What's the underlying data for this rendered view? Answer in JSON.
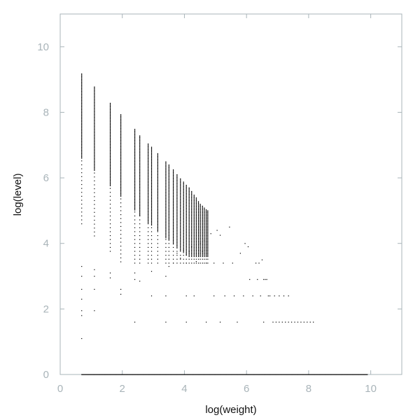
{
  "chart_data": {
    "type": "scatter",
    "title": "",
    "xlabel": "log(weight)",
    "ylabel": "log(level)",
    "xlim": [
      0,
      11
    ],
    "ylim": [
      0,
      11
    ],
    "x_ticks": [
      0,
      2,
      4,
      6,
      8,
      10
    ],
    "y_ticks": [
      0,
      2,
      4,
      6,
      8,
      10
    ],
    "x_tick_labels": [
      "0",
      "2",
      "4",
      "6",
      "8",
      "10"
    ],
    "y_tick_labels": [
      "0",
      "2",
      "4",
      "6",
      "8",
      "10"
    ],
    "grid": false,
    "legend": "none",
    "colors": {
      "points": "#000000",
      "frame": "#a9b4b9",
      "tick_labels": "#a9b4b9",
      "axis_labels": "#111111"
    },
    "columns": [
      {
        "x": 0.69,
        "ymax": 9.2
      },
      {
        "x": 1.1,
        "ymax": 8.8
      },
      {
        "x": 1.61,
        "ymax": 8.3
      },
      {
        "x": 1.95,
        "ymax": 7.95
      },
      {
        "x": 2.4,
        "ymax": 7.5
      },
      {
        "x": 2.56,
        "ymax": 7.3
      },
      {
        "x": 2.83,
        "ymax": 7.05
      },
      {
        "x": 2.94,
        "ymax": 6.95
      },
      {
        "x": 3.14,
        "ymax": 6.75
      },
      {
        "x": 3.4,
        "ymax": 6.5
      },
      {
        "x": 3.5,
        "ymax": 6.4
      },
      {
        "x": 3.64,
        "ymax": 6.25
      },
      {
        "x": 3.76,
        "ymax": 6.1
      },
      {
        "x": 3.87,
        "ymax": 6.0
      },
      {
        "x": 3.97,
        "ymax": 5.9
      },
      {
        "x": 4.06,
        "ymax": 5.8
      },
      {
        "x": 4.15,
        "ymax": 5.7
      },
      {
        "x": 4.23,
        "ymax": 5.6
      },
      {
        "x": 4.31,
        "ymax": 5.5
      },
      {
        "x": 4.38,
        "ymax": 5.4
      },
      {
        "x": 4.45,
        "ymax": 5.3
      },
      {
        "x": 4.51,
        "ymax": 5.2
      },
      {
        "x": 4.58,
        "ymax": 5.15
      },
      {
        "x": 4.64,
        "ymax": 5.1
      },
      {
        "x": 4.7,
        "ymax": 5.05
      },
      {
        "x": 4.75,
        "ymax": 5.0
      }
    ],
    "sparse_points": [
      [
        0.69,
        1.1
      ],
      [
        0.69,
        1.8
      ],
      [
        0.69,
        1.95
      ],
      [
        0.69,
        2.3
      ],
      [
        0.69,
        2.6
      ],
      [
        0.69,
        3.0
      ],
      [
        0.69,
        3.3
      ],
      [
        1.1,
        1.95
      ],
      [
        1.1,
        2.6
      ],
      [
        1.1,
        3.0
      ],
      [
        1.1,
        3.2
      ],
      [
        1.61,
        2.95
      ],
      [
        1.61,
        3.1
      ],
      [
        1.95,
        2.45
      ],
      [
        1.95,
        2.6
      ],
      [
        2.4,
        1.6
      ],
      [
        2.4,
        2.9
      ],
      [
        2.4,
        3.1
      ],
      [
        2.56,
        2.85
      ],
      [
        2.94,
        2.4
      ],
      [
        2.94,
        3.15
      ],
      [
        3.4,
        1.6
      ],
      [
        3.4,
        2.4
      ],
      [
        3.4,
        3.0
      ],
      [
        3.5,
        3.3
      ],
      [
        3.64,
        3.4
      ],
      [
        3.76,
        3.7
      ],
      [
        3.87,
        3.55
      ],
      [
        3.97,
        3.8
      ],
      [
        4.06,
        1.6
      ],
      [
        4.06,
        2.4
      ],
      [
        4.06,
        3.4
      ],
      [
        4.15,
        3.75
      ],
      [
        4.23,
        3.9
      ],
      [
        4.31,
        2.4
      ],
      [
        4.38,
        3.45
      ],
      [
        4.51,
        4.0
      ],
      [
        4.58,
        3.75
      ],
      [
        4.64,
        4.1
      ],
      [
        4.7,
        1.6
      ],
      [
        4.7,
        3.4
      ],
      [
        4.85,
        4.3
      ],
      [
        4.95,
        2.4
      ],
      [
        4.95,
        3.4
      ],
      [
        5.05,
        4.4
      ],
      [
        5.15,
        1.6
      ],
      [
        5.15,
        4.25
      ],
      [
        5.25,
        3.4
      ],
      [
        5.3,
        2.4
      ],
      [
        5.45,
        4.5
      ],
      [
        5.55,
        3.4
      ],
      [
        5.6,
        2.4
      ],
      [
        5.7,
        1.6
      ],
      [
        5.8,
        3.7
      ],
      [
        5.9,
        2.4
      ],
      [
        5.95,
        4.0
      ],
      [
        6.05,
        3.9
      ],
      [
        6.1,
        2.9
      ],
      [
        6.2,
        2.4
      ],
      [
        6.3,
        3.4
      ],
      [
        6.35,
        2.9
      ],
      [
        6.4,
        3.4
      ],
      [
        6.45,
        2.4
      ],
      [
        6.5,
        3.5
      ],
      [
        6.55,
        2.9
      ],
      [
        6.55,
        1.6
      ],
      [
        6.6,
        2.9
      ],
      [
        6.65,
        2.9
      ],
      [
        6.7,
        2.4
      ],
      [
        6.75,
        2.4
      ],
      [
        6.85,
        1.6
      ],
      [
        6.9,
        2.4
      ],
      [
        6.95,
        1.6
      ],
      [
        7.05,
        2.4
      ],
      [
        7.05,
        1.6
      ],
      [
        7.15,
        1.6
      ],
      [
        7.2,
        2.4
      ],
      [
        7.25,
        1.6
      ],
      [
        7.35,
        2.4
      ],
      [
        7.35,
        1.6
      ],
      [
        7.45,
        1.6
      ],
      [
        7.55,
        1.6
      ],
      [
        7.65,
        1.6
      ],
      [
        7.75,
        1.6
      ],
      [
        7.85,
        1.6
      ],
      [
        7.95,
        1.6
      ],
      [
        8.05,
        1.6
      ],
      [
        8.15,
        1.6
      ]
    ],
    "baseline": {
      "y": 0.0,
      "x_start": 0.69,
      "x_end": 9.9
    }
  }
}
